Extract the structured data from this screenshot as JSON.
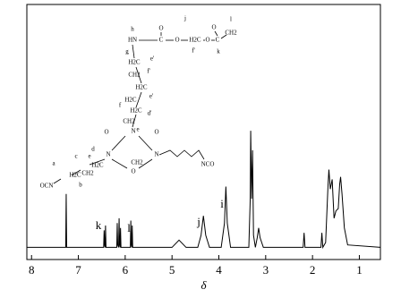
{
  "chart_data": {
    "type": "line",
    "x_label": "δ",
    "xlim": [
      8.1,
      0.55
    ],
    "xticks": [
      8,
      7,
      6,
      5,
      4,
      3,
      2,
      1
    ],
    "ylim": [
      -5,
      100
    ],
    "series": [
      {
        "color": "#000000",
        "x": [
          8.1,
          7.3,
          7.27,
          7.26,
          7.25,
          7.22,
          6.5,
          6.46,
          6.45,
          6.44,
          6.43,
          6.42,
          6.41,
          6.2,
          6.18,
          6.17,
          6.16,
          6.14,
          6.13,
          6.12,
          6.11,
          6.1,
          6.09,
          5.9,
          5.89,
          5.88,
          5.87,
          5.86,
          5.85,
          5.84,
          5.0,
          4.85,
          4.7,
          4.45,
          4.38,
          4.33,
          4.28,
          4.2,
          3.95,
          3.88,
          3.85,
          3.82,
          3.75,
          3.36,
          3.33,
          3.32,
          3.3,
          3.28,
          3.26,
          3.22,
          3.18,
          3.15,
          3.12,
          3.05,
          2.2,
          2.18,
          2.16,
          1.82,
          1.8,
          1.78,
          1.72,
          1.67,
          1.65,
          1.62,
          1.58,
          1.54,
          1.5,
          1.45,
          1.42,
          1.4,
          1.37,
          1.32,
          1.25,
          0.55
        ],
        "values": [
          0,
          0,
          0,
          22,
          0,
          0,
          0,
          0,
          7,
          1,
          0,
          9,
          0,
          0,
          0,
          10,
          1,
          0,
          12,
          1,
          0,
          8,
          0,
          0,
          0,
          11,
          1,
          0,
          9,
          0,
          0,
          3,
          0,
          0,
          5,
          13,
          5,
          0,
          0,
          10,
          25,
          10,
          0,
          0,
          20,
          48,
          20,
          40,
          5,
          0,
          4,
          8,
          4,
          0,
          0,
          6,
          0,
          0,
          6,
          0,
          2,
          25,
          32,
          24,
          28,
          12,
          15,
          16,
          26,
          29,
          22,
          8,
          1,
          0
        ]
      }
    ],
    "annotations": [
      "k",
      "l",
      "j",
      "i"
    ],
    "structure_labels": [
      "h",
      "HN",
      "C",
      "O",
      "O",
      "j",
      "H2C",
      "O",
      "C",
      "O",
      "CH2",
      "l",
      "k",
      "f'",
      "g",
      "H2C",
      "f'",
      "e'",
      "H2C",
      "CH2",
      "e'",
      "H2C",
      "d'",
      "f",
      "H2C",
      "CH2",
      "e",
      "O",
      "N",
      "O",
      "N",
      "N",
      "O",
      "d",
      "CH2",
      "c",
      "e",
      "H2C",
      "CH2",
      "a",
      "H2C",
      "b",
      "OCN",
      "NCO"
    ]
  }
}
